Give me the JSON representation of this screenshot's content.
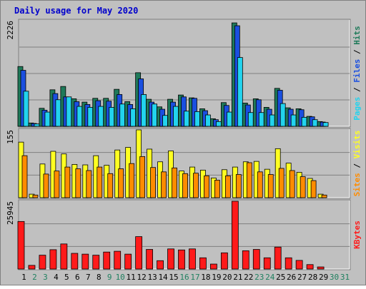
{
  "chart_data": {
    "type": "bar",
    "title": "Daily usage for May 2020",
    "days": [
      "1",
      "2",
      "3",
      "4",
      "5",
      "6",
      "7",
      "8",
      "9",
      "10",
      "11",
      "12",
      "13",
      "14",
      "15",
      "16",
      "17",
      "18",
      "19",
      "20",
      "21",
      "22",
      "23",
      "24",
      "25",
      "26",
      "27",
      "28",
      "29",
      "30",
      "31"
    ],
    "weekend_days": [
      "2",
      "3",
      "9",
      "10",
      "16",
      "17",
      "23",
      "24",
      "30",
      "31"
    ],
    "panels": [
      {
        "id": "hits_files_pages",
        "max_label": "2226",
        "ylim": [
          0,
          2226
        ],
        "series": [
          {
            "name": "Hits",
            "color": "#1f7a5a",
            "values": [
              1260,
              70,
              380,
              770,
              840,
              580,
              510,
              590,
              590,
              780,
              520,
              1130,
              570,
              410,
              570,
              660,
              600,
              370,
              160,
              500,
              2180,
              490,
              580,
              400,
              800,
              390,
              370,
              210,
              100
            ]
          },
          {
            "name": "Files",
            "color": "#1a4fe0",
            "values": [
              1180,
              60,
              340,
              690,
              620,
              520,
              460,
              540,
              530,
              670,
              460,
              1000,
              510,
              360,
              510,
              620,
              590,
              330,
              140,
              440,
              2120,
              450,
              560,
              360,
              760,
              360,
              350,
              200,
              90
            ]
          },
          {
            "name": "Pages",
            "color": "#22d3ee",
            "values": [
              740,
              50,
              300,
              560,
              620,
              420,
              400,
              420,
              400,
              470,
              370,
              670,
              470,
              230,
              420,
              320,
              310,
              240,
              100,
              300,
              1450,
              290,
              290,
              240,
              480,
              240,
              190,
              140,
              80
            ]
          }
        ]
      },
      {
        "id": "visits_sites",
        "max_label": "155",
        "ylim": [
          0,
          155
        ],
        "series": [
          {
            "name": "Visits",
            "color": "#ffff22",
            "values": [
              127,
              8,
              77,
              106,
              100,
              76,
              75,
              96,
              74,
              109,
              115,
              155,
              111,
              82,
              107,
              61,
              70,
              63,
              45,
              64,
              70,
              82,
              83,
              65,
              112,
              79,
              58,
              44,
              8
            ]
          },
          {
            "name": "Sites",
            "color": "#ff8c00",
            "values": [
              96,
              6,
              54,
              61,
              70,
              66,
              62,
              70,
              55,
              66,
              78,
              94,
              69,
              59,
              68,
              55,
              56,
              50,
              40,
              50,
              53,
              80,
              59,
              53,
              67,
              62,
              48,
              39,
              6
            ]
          }
        ]
      },
      {
        "id": "kbytes",
        "max_label": "25945",
        "ylim": [
          0,
          25945
        ],
        "series": [
          {
            "name": "KBytes",
            "color": "#ff1a1a",
            "values": [
              18200,
              1400,
              5300,
              7400,
              9600,
              6000,
              5700,
              5300,
              6500,
              6800,
              5700,
              12400,
              7500,
              3200,
              7700,
              7300,
              7700,
              4300,
              1900,
              6200,
              25945,
              7000,
              7500,
              4300,
              8400,
              4300,
              3300,
              1700,
              800
            ]
          }
        ]
      }
    ],
    "axis_labels": [
      {
        "panel": "hits_files_pages",
        "parts": [
          {
            "text": "Pages",
            "color": "#22d3ee"
          },
          {
            "text": " / ",
            "color": "#000000"
          },
          {
            "text": "Files",
            "color": "#1a4fe0"
          },
          {
            "text": " / ",
            "color": "#000000"
          },
          {
            "text": "Hits",
            "color": "#1f7a5a"
          }
        ]
      },
      {
        "panel": "visits_sites",
        "parts": [
          {
            "text": "Sites",
            "color": "#ff8c00"
          },
          {
            "text": " / ",
            "color": "#000000"
          },
          {
            "text": "Visits",
            "color": "#ffff22"
          }
        ]
      },
      {
        "panel": "kbytes",
        "parts": [
          {
            "text": "KBytes",
            "color": "#ff1a1a"
          }
        ]
      }
    ],
    "colors": {
      "title": "#0000cc",
      "plot_bg": "#c0c0c0",
      "frame_bg": "#c0c0c0",
      "gridline": "#808080",
      "weekday_label": "#000000",
      "weekend_label": "#208060"
    }
  }
}
